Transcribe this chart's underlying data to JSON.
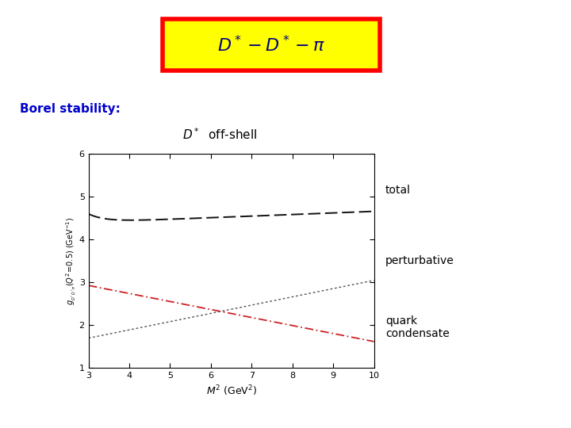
{
  "borel_label": "Borel stability:",
  "subtitle_math": "$D^*$  off-shell",
  "xlabel": "$M^2$ (GeV$^2$)",
  "ylabel": "$g_{_{D^*D^*\\pi}}(Q^2\\!=\\!0.5)$ (GeV$^{-1}$)",
  "xlim": [
    3,
    10
  ],
  "ylim": [
    1,
    6
  ],
  "xticks": [
    3,
    4,
    5,
    6,
    7,
    8,
    9,
    10
  ],
  "yticks": [
    1,
    2,
    3,
    4,
    5,
    6
  ],
  "line_total_color": "#111111",
  "line_pert_color": "#555555",
  "line_quark_color": "#cc2222",
  "annotation_total": "total",
  "annotation_pert": "perturbative",
  "annotation_quark": "quark\ncondensate",
  "title_text": "$D^* - D^* - \\pi$",
  "title_color": "#000080",
  "title_bg": "yellow",
  "title_border": "red",
  "borel_color": "#0000cc"
}
